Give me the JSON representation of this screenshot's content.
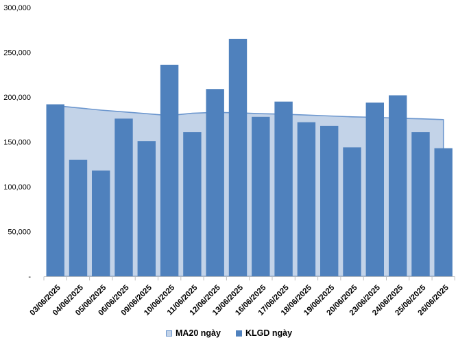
{
  "chart_data": {
    "type": "combo",
    "title": "",
    "categories": [
      "03/06/2025",
      "04/06/2025",
      "05/06/2025",
      "06/06/2025",
      "09/06/2025",
      "10/06/2025",
      "11/06/2025",
      "12/06/2025",
      "13/06/2025",
      "16/06/2025",
      "17/06/2025",
      "18/06/2025",
      "19/06/2025",
      "20/06/2025",
      "23/06/2025",
      "24/06/2025",
      "25/06/2025",
      "26/06/2025"
    ],
    "series": [
      {
        "name": "MA20 ngày",
        "type": "area",
        "fill": "#C3D3E8",
        "line": "#6B96CE",
        "values": [
          190500,
          188000,
          185500,
          183500,
          181500,
          179500,
          182000,
          183000,
          182500,
          181500,
          181000,
          180000,
          179000,
          178000,
          177500,
          176500,
          175800,
          175000
        ]
      },
      {
        "name": "KLGD ngày",
        "type": "bar",
        "color": "#4F81BD",
        "values": [
          192000,
          130000,
          118000,
          176000,
          151000,
          236000,
          161000,
          209000,
          265000,
          178000,
          195000,
          172000,
          168000,
          144000,
          194000,
          202000,
          161000,
          143000
        ]
      }
    ],
    "ylim": [
      0,
      300000
    ],
    "y_ticks": [
      {
        "value": 0,
        "label": "-"
      },
      {
        "value": 50000,
        "label": "50,000"
      },
      {
        "value": 100000,
        "label": "100,000"
      },
      {
        "value": 150000,
        "label": "150,000"
      },
      {
        "value": 200000,
        "label": "200,000"
      },
      {
        "value": 250000,
        "label": "250,000"
      },
      {
        "value": 300000,
        "label": "300,000"
      }
    ],
    "x_tick_rotation": -45,
    "grid": "off",
    "legend_position": "bottom",
    "axis_color": "#BFBFBF",
    "text_color": "#000000"
  }
}
